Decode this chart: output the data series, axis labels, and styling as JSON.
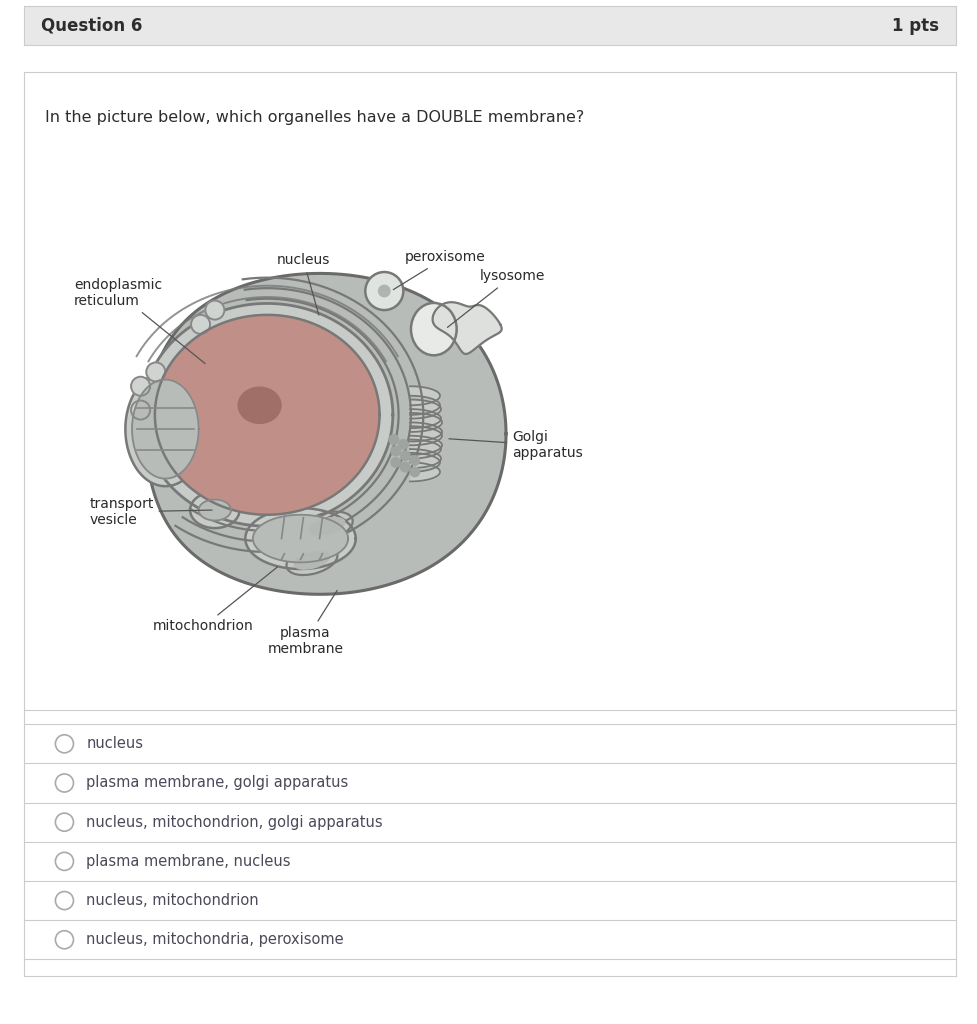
{
  "title": "Question 6",
  "pts": "1 pts",
  "question": "In the picture below, which organelles have a DOUBLE membrane?",
  "header_bg": "#e8e8e8",
  "border_color": "#cccccc",
  "bg_color": "#ffffff",
  "text_color": "#2d2d2d",
  "cell_bg": "#b8bcb8",
  "nucleus_bg": "#c09088",
  "options": [
    "nucleus",
    "plasma membrane, golgi apparatus",
    "nucleus, mitochondrion, golgi apparatus",
    "plasma membrane, nucleus",
    "nucleus, mitochondrion",
    "nucleus, mitochondria, peroxisome"
  ]
}
